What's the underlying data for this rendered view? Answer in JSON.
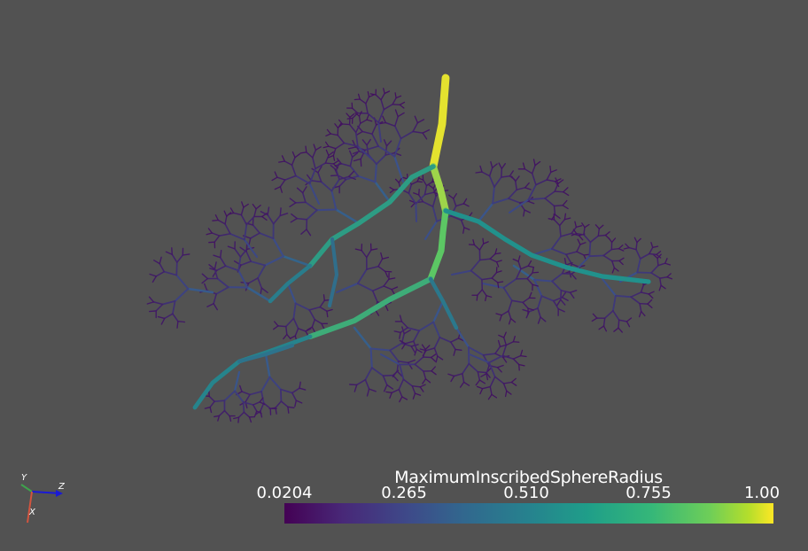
{
  "scalar_bar": {
    "title": "MaximumInscribedSphereRadius",
    "ticks": [
      "0.0204",
      "0.265",
      "0.510",
      "0.755",
      "1.00"
    ],
    "colormap": [
      "#440154",
      "#3e4989",
      "#26828e",
      "#35b779",
      "#fde725"
    ]
  },
  "orientation_axes": {
    "x": "X",
    "y": "Y",
    "z": "Z"
  },
  "colors": {
    "background": "#525252"
  }
}
